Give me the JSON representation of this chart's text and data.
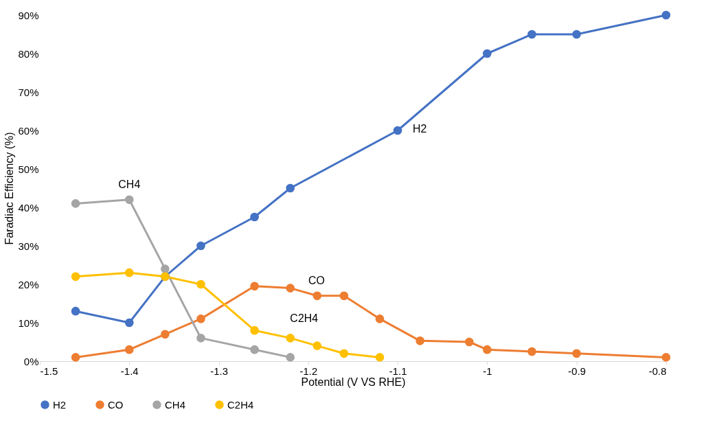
{
  "chart_data": {
    "type": "line",
    "xlabel": "Potential (V VS RHE)",
    "ylabel": "Faradiac Efficiency (%)",
    "xlim": [
      -1.5,
      -0.8
    ],
    "xticks": [
      -1.5,
      -1.4,
      -1.3,
      -1.2,
      -1.1,
      -1,
      -0.9,
      -0.8
    ],
    "ylim": [
      0,
      90
    ],
    "yticks": [
      {
        "value": 0,
        "label": "0%"
      },
      {
        "value": 10,
        "label": "10%"
      },
      {
        "value": 20,
        "label": "20%"
      },
      {
        "value": 30,
        "label": "30%"
      },
      {
        "value": 40,
        "label": "40%"
      },
      {
        "value": 50,
        "label": "50%"
      },
      {
        "value": 60,
        "label": "60%"
      },
      {
        "value": 70,
        "label": "70%"
      },
      {
        "value": 80,
        "label": "80%"
      },
      {
        "value": 90,
        "label": "90%"
      }
    ],
    "grid": false,
    "legend": "bottom",
    "marker": "circle",
    "line_style": "solid",
    "series": [
      {
        "name": "H2",
        "color": "#4472c4",
        "x": [
          -1.46,
          -1.4,
          -1.36,
          -1.32,
          -1.26,
          -1.22,
          -1.1,
          -1.0,
          -0.95,
          -0.9,
          -0.8
        ],
        "values": [
          13,
          10,
          22,
          30,
          37.5,
          45,
          60,
          80,
          85,
          85,
          90
        ]
      },
      {
        "name": "CO",
        "color": "#ed7d31",
        "x": [
          -1.46,
          -1.4,
          -1.36,
          -1.32,
          -1.26,
          -1.22,
          -1.19,
          -1.16,
          -1.12,
          -1.075,
          -1.02,
          -1.0,
          -0.95,
          -0.9,
          -0.8
        ],
        "values": [
          1,
          3,
          7,
          11,
          19.5,
          19,
          17,
          17,
          11,
          5.3,
          5,
          3,
          2.5,
          2,
          1
        ]
      },
      {
        "name": "CH4",
        "color": "#a5a5a5",
        "x": [
          -1.46,
          -1.4,
          -1.36,
          -1.32,
          -1.26,
          -1.22
        ],
        "values": [
          41,
          42,
          24,
          6,
          3,
          1
        ]
      },
      {
        "name": "C2H4",
        "color": "#ffc000",
        "x": [
          -1.46,
          -1.4,
          -1.36,
          -1.32,
          -1.26,
          -1.22,
          -1.19,
          -1.16,
          -1.12
        ],
        "values": [
          22,
          23,
          22,
          20,
          8,
          6,
          4,
          2,
          1
        ]
      }
    ],
    "annotations": [
      {
        "text": "H2",
        "x": -1.1,
        "y": 60
      },
      {
        "text": "CH4",
        "x": -1.4,
        "y": 42
      },
      {
        "text": "CO",
        "x": -1.16,
        "y": 17
      },
      {
        "text": "C2H4",
        "x": -1.22,
        "y": 6
      }
    ]
  }
}
